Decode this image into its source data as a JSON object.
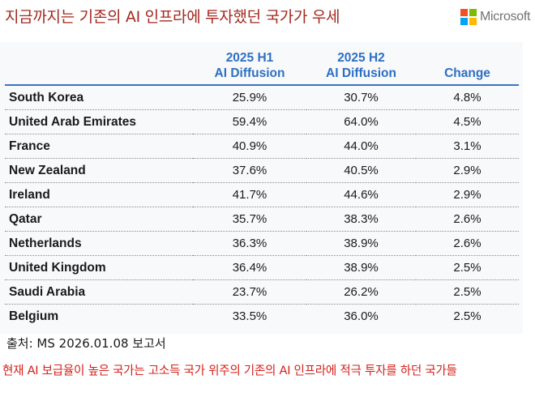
{
  "header": {
    "title": "지금까지는 기존의 AI 인프라에 투자했던 국가가 우세",
    "logo": {
      "icon": "microsoft-logo-icon",
      "text": "Microsoft",
      "colors": [
        "#f25022",
        "#7fba00",
        "#00a4ef",
        "#ffb900"
      ]
    }
  },
  "table": {
    "columns": [
      {
        "line1": "",
        "line2": ""
      },
      {
        "line1": "2025 H1",
        "line2": "AI Diffusion"
      },
      {
        "line1": "2025 H2",
        "line2": "AI Diffusion"
      },
      {
        "line1": "",
        "line2": "Change"
      }
    ],
    "rows": [
      {
        "country": "South Korea",
        "h1": "25.9%",
        "h2": "30.7%",
        "change": "4.8%"
      },
      {
        "country": "United Arab Emirates",
        "h1": "59.4%",
        "h2": "64.0%",
        "change": "4.5%"
      },
      {
        "country": "France",
        "h1": "40.9%",
        "h2": "44.0%",
        "change": "3.1%"
      },
      {
        "country": "New Zealand",
        "h1": "37.6%",
        "h2": "40.5%",
        "change": "2.9%"
      },
      {
        "country": "Ireland",
        "h1": "41.7%",
        "h2": "44.6%",
        "change": "2.9%"
      },
      {
        "country": "Qatar",
        "h1": "35.7%",
        "h2": "38.3%",
        "change": "2.6%"
      },
      {
        "country": "Netherlands",
        "h1": "36.3%",
        "h2": "38.9%",
        "change": "2.6%"
      },
      {
        "country": "United Kingdom",
        "h1": "36.4%",
        "h2": "38.9%",
        "change": "2.5%"
      },
      {
        "country": "Saudi Arabia",
        "h1": "23.7%",
        "h2": "26.2%",
        "change": "2.5%"
      },
      {
        "country": "Belgium",
        "h1": "33.5%",
        "h2": "36.0%",
        "change": "2.5%"
      }
    ]
  },
  "footer": {
    "source": "출처: MS 2026.01.08 보고서",
    "note": "현재 AI 보급율이 높은 국가는 고소득 국가 위주의 기존의 AI 인프라에 적극 투자를 하던 국가들"
  },
  "colors": {
    "title": "#a3281e",
    "header_text": "#2e6fc3",
    "header_rule": "#3a74c0",
    "note": "#d4201a",
    "panel_bg": "#f8f9fb"
  }
}
